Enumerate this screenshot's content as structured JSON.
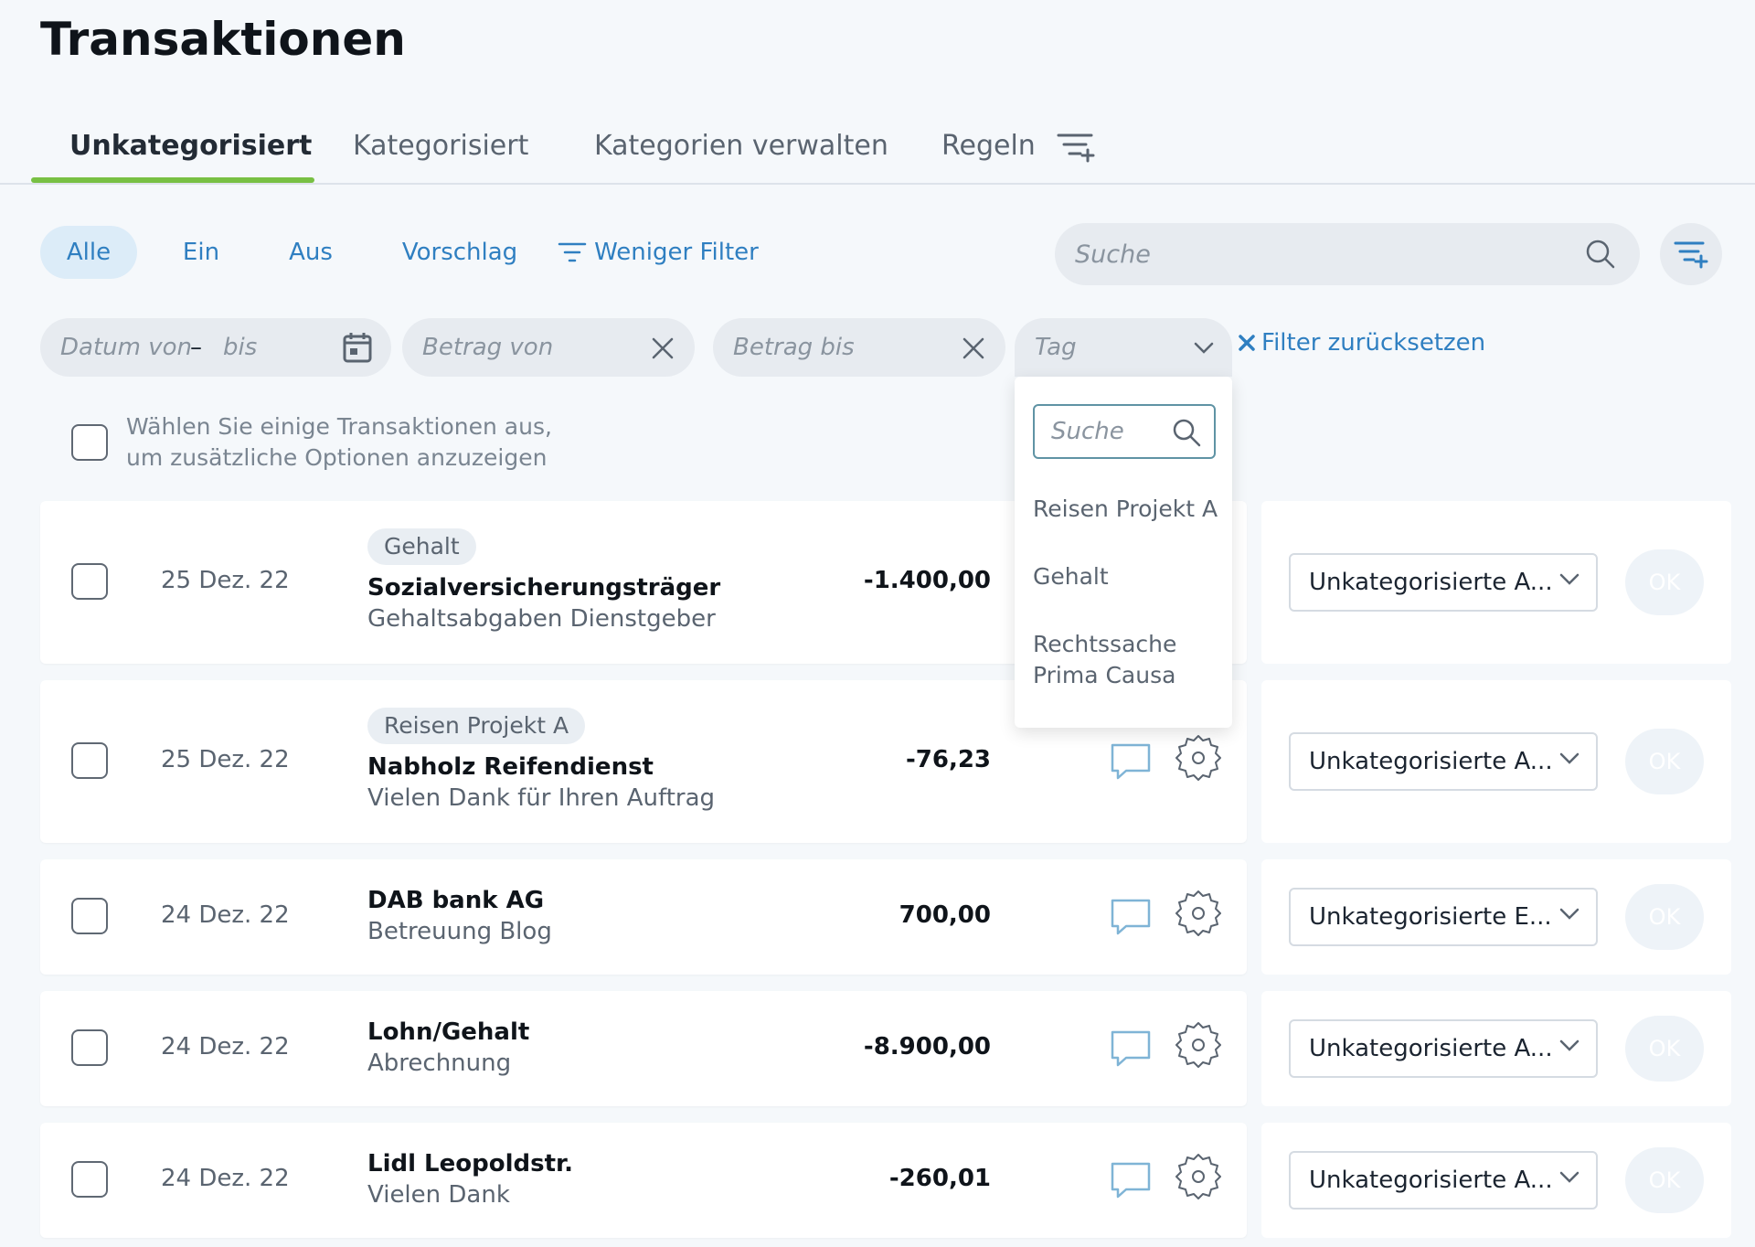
{
  "page": {
    "title": "Transaktionen"
  },
  "tabs": [
    {
      "label": "Unkategorisiert"
    },
    {
      "label": "Kategorisiert"
    },
    {
      "label": "Kategorien verwalten"
    },
    {
      "label": "Regeln"
    }
  ],
  "chips": {
    "all": "Alle",
    "in": "Ein",
    "out": "Aus",
    "suggestion": "Vorschlag",
    "less_filter": "Weniger Filter"
  },
  "search": {
    "placeholder": "Suche"
  },
  "filters": {
    "date_from": "Datum von",
    "date_sep": "–",
    "date_to": "bis",
    "amount_from": "Betrag von",
    "amount_to": "Betrag bis",
    "tag": "Tag",
    "reset": "Filter zurücksetzen"
  },
  "select_hint": [
    "Wählen Sie einige Transaktionen aus,",
    "um zusätzliche Optionen anzuzeigen"
  ],
  "tag_dropdown": {
    "search_placeholder": "Suche",
    "items": [
      "Reisen Projekt A",
      "Gehalt",
      "Rechtssache Prima Causa"
    ]
  },
  "rows": [
    {
      "date": "25 Dez. 22",
      "tag": "Gehalt",
      "name": "Sozialversicherungsträger",
      "sub": "Gehaltsabgaben Dienstgeber",
      "amount": "-1.400,00",
      "category": "Unkategorisierte A...",
      "ok": "OK"
    },
    {
      "date": "25 Dez. 22",
      "tag": "Reisen Projekt A",
      "name": "Nabholz Reifendienst",
      "sub": "Vielen Dank für Ihren Auftrag",
      "amount": "-76,23",
      "category": "Unkategorisierte A...",
      "ok": "OK"
    },
    {
      "date": "24 Dez. 22",
      "tag": "",
      "name": "DAB bank AG",
      "sub": "Betreuung Blog",
      "amount": "700,00",
      "category": "Unkategorisierte E...",
      "ok": "OK"
    },
    {
      "date": "24 Dez. 22",
      "tag": "",
      "name": "Lohn/Gehalt",
      "sub": "Abrechnung",
      "amount": "-8.900,00",
      "category": "Unkategorisierte A...",
      "ok": "OK"
    },
    {
      "date": "24 Dez. 22",
      "tag": "",
      "name": "Lidl Leopoldstr.",
      "sub": "Vielen Dank",
      "amount": "-260,01",
      "category": "Unkategorisierte A...",
      "ok": "OK"
    }
  ],
  "colors": {
    "accent": "#2f7fc1",
    "tab_underline": "#78c043"
  }
}
